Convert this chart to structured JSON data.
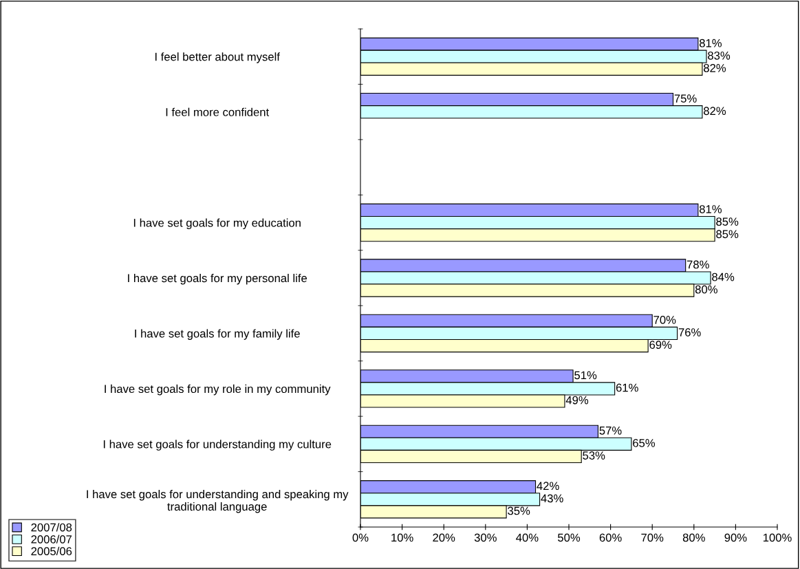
{
  "chart_data": {
    "type": "bar",
    "orientation": "horizontal",
    "categories": [
      "I feel better about myself",
      "I feel more confident",
      null,
      "I have set goals for my education",
      "I have set goals for my personal life",
      "I have set goals for my family life",
      "I have set goals for my role in my community",
      "I have set goals for understanding my culture",
      "I have set goals for understanding and speaking my\ntraditional language"
    ],
    "series": [
      {
        "name": "2007/08",
        "color": "#9999ff",
        "values": [
          81,
          75,
          null,
          81,
          78,
          70,
          51,
          57,
          42
        ],
        "value_labels": [
          "81%",
          "75%",
          null,
          "81%",
          "78%",
          "70%",
          "51%",
          "57%",
          "42%"
        ]
      },
      {
        "name": "2006/07",
        "color": "#ccffff",
        "values": [
          83,
          82,
          null,
          85,
          84,
          76,
          61,
          65,
          43
        ],
        "value_labels": [
          "83%",
          "82%",
          null,
          "85%",
          "84%",
          "76%",
          "61%",
          "65%",
          "43%"
        ]
      },
      {
        "name": "2005/06",
        "color": "#ffffcc",
        "values": [
          82,
          null,
          null,
          85,
          80,
          69,
          49,
          53,
          35
        ],
        "value_labels": [
          "82%",
          null,
          null,
          "85%",
          "80%",
          "69%",
          "49%",
          "53%",
          "35%"
        ]
      }
    ],
    "xlim": [
      0,
      100
    ],
    "xticks": [
      {
        "value": 0,
        "label": "0%"
      },
      {
        "value": 10,
        "label": "10%"
      },
      {
        "value": 20,
        "label": "20%"
      },
      {
        "value": 30,
        "label": "30%"
      },
      {
        "value": 40,
        "label": "40%"
      },
      {
        "value": 50,
        "label": "50%"
      },
      {
        "value": 60,
        "label": "60%"
      },
      {
        "value": 70,
        "label": "70%"
      },
      {
        "value": 80,
        "label": "80%"
      },
      {
        "value": 90,
        "label": "90%"
      },
      {
        "value": 100,
        "label": "100%"
      }
    ],
    "grid": false,
    "legend": "bottom left"
  }
}
